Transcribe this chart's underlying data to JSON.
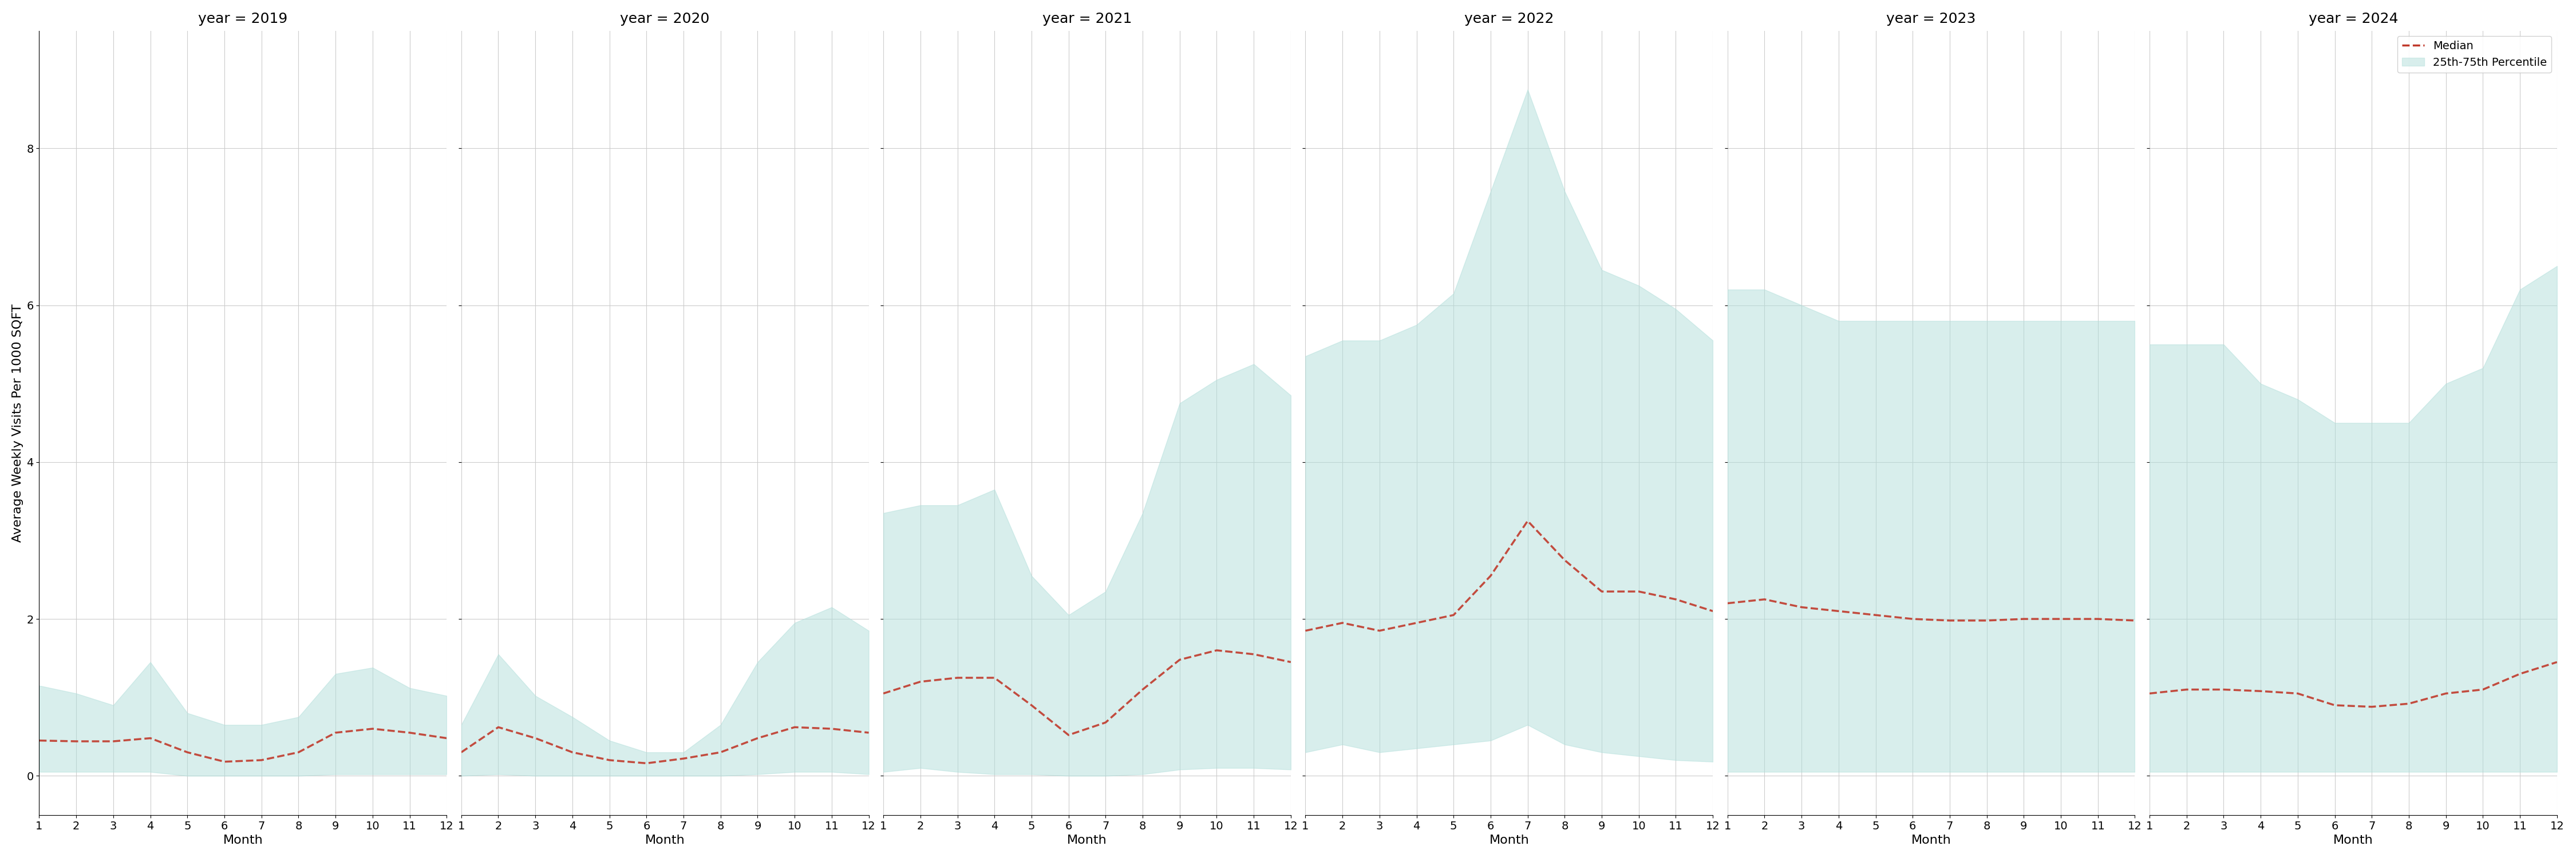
{
  "years": [
    2019,
    2020,
    2021,
    2022,
    2023,
    2024
  ],
  "months": [
    1,
    2,
    3,
    4,
    5,
    6,
    7,
    8,
    9,
    10,
    11,
    12
  ],
  "ylabel": "Average Weekly Visits Per 1000 SQFT",
  "xlabel": "Month",
  "ylim": [
    -0.5,
    9.5
  ],
  "yticks": [
    0,
    2,
    4,
    6,
    8
  ],
  "fill_color": "#b2dfdb",
  "fill_alpha": 0.5,
  "line_color": "#c0392b",
  "line_alpha": 0.9,
  "median": {
    "2019": [
      0.45,
      0.44,
      0.44,
      0.48,
      0.3,
      0.18,
      0.2,
      0.3,
      0.55,
      0.6,
      0.55,
      0.48
    ],
    "2020": [
      0.3,
      0.62,
      0.48,
      0.3,
      0.2,
      0.16,
      0.22,
      0.3,
      0.48,
      0.62,
      0.6,
      0.55
    ],
    "2021": [
      1.05,
      1.2,
      1.25,
      1.25,
      0.9,
      0.52,
      0.68,
      1.1,
      1.48,
      1.6,
      1.55,
      1.45
    ],
    "2022": [
      1.85,
      1.95,
      1.85,
      1.95,
      2.05,
      2.55,
      3.25,
      2.75,
      2.35,
      2.35,
      2.25,
      2.1
    ],
    "2023": [
      2.2,
      2.25,
      2.15,
      2.1,
      2.05,
      2.0,
      1.98,
      1.98,
      2.0,
      2.0,
      2.0,
      1.98
    ],
    "2024": [
      1.05,
      1.1,
      1.1,
      1.08,
      1.05,
      0.9,
      0.88,
      0.92,
      1.05,
      1.1,
      1.3,
      1.45
    ]
  },
  "p25": {
    "2019": [
      0.05,
      0.05,
      0.05,
      0.05,
      0.0,
      0.0,
      0.0,
      0.0,
      0.02,
      0.02,
      0.02,
      0.02
    ],
    "2020": [
      0.0,
      0.02,
      0.0,
      0.0,
      0.0,
      0.0,
      0.0,
      0.0,
      0.02,
      0.05,
      0.05,
      0.02
    ],
    "2021": [
      0.05,
      0.1,
      0.05,
      0.02,
      0.02,
      0.0,
      0.0,
      0.02,
      0.08,
      0.1,
      0.1,
      0.08
    ],
    "2022": [
      0.3,
      0.4,
      0.3,
      0.35,
      0.4,
      0.45,
      0.65,
      0.4,
      0.3,
      0.25,
      0.2,
      0.18
    ],
    "2023": [
      0.05,
      0.05,
      0.05,
      0.05,
      0.05,
      0.05,
      0.05,
      0.05,
      0.05,
      0.05,
      0.05,
      0.05
    ],
    "2024": [
      0.05,
      0.05,
      0.05,
      0.05,
      0.05,
      0.05,
      0.05,
      0.05,
      0.05,
      0.05,
      0.05,
      0.05
    ]
  },
  "p75": {
    "2019": [
      1.15,
      1.05,
      0.9,
      1.45,
      0.8,
      0.65,
      0.65,
      0.75,
      1.3,
      1.38,
      1.12,
      1.02
    ],
    "2020": [
      0.65,
      1.55,
      1.02,
      0.75,
      0.45,
      0.3,
      0.3,
      0.65,
      1.45,
      1.95,
      2.15,
      1.85
    ],
    "2021": [
      3.35,
      3.45,
      3.45,
      3.65,
      2.55,
      2.05,
      2.35,
      3.35,
      4.75,
      5.05,
      5.25,
      4.85
    ],
    "2022": [
      5.35,
      5.55,
      5.55,
      5.75,
      6.15,
      7.45,
      8.75,
      7.45,
      6.45,
      6.25,
      5.95,
      5.55
    ],
    "2023": [
      6.2,
      6.2,
      6.0,
      5.8,
      5.8,
      5.8,
      5.8,
      5.8,
      5.8,
      5.8,
      5.8,
      5.8
    ],
    "2024": [
      5.5,
      5.5,
      5.5,
      5.0,
      4.8,
      4.5,
      4.5,
      4.5,
      5.0,
      5.2,
      6.2,
      6.5
    ]
  },
  "background_color": "#ffffff",
  "grid_color": "#cccccc",
  "title_fontsize": 18,
  "label_fontsize": 16,
  "tick_fontsize": 14,
  "legend_entries": [
    "Median",
    "25th-75th Percentile"
  ]
}
